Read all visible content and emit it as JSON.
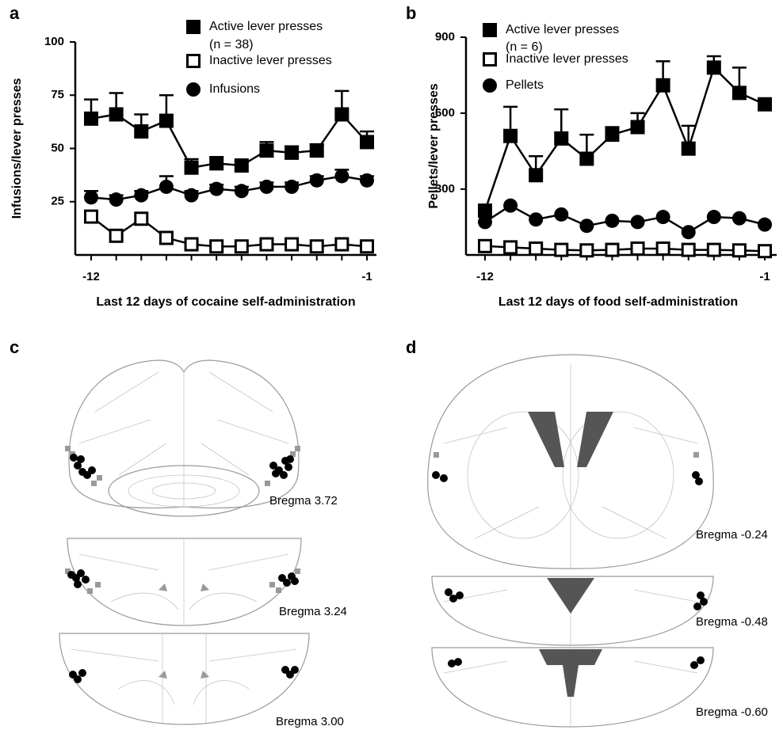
{
  "chart_data": [
    {
      "type": "line",
      "panel": "a",
      "ylabel": "Infusions/lever presses",
      "xlabel": "Last 12 days of cocaine self-administration",
      "n_label": "(n = 38)",
      "categories": [
        "-12",
        null,
        null,
        null,
        null,
        null,
        null,
        null,
        null,
        null,
        null,
        "-1"
      ],
      "ylim": [
        0,
        100
      ],
      "yticks": [
        25,
        50,
        75,
        100
      ],
      "series": [
        {
          "name": "Active lever presses",
          "marker": "square",
          "color": "#000000",
          "values": [
            64,
            66,
            58,
            63,
            41,
            43,
            42,
            49,
            48,
            49,
            66,
            53
          ],
          "errors": [
            9,
            10,
            8,
            12,
            4,
            3,
            2,
            4,
            3,
            3,
            11,
            5
          ]
        },
        {
          "name": "Inactive lever presses",
          "marker": "open-square",
          "color": "#000000",
          "values": [
            18,
            9,
            17,
            8,
            5,
            4,
            4,
            5,
            5,
            4,
            5,
            4
          ]
        },
        {
          "name": "Infusions",
          "marker": "circle",
          "color": "#000000",
          "values": [
            27,
            26,
            28,
            32,
            28,
            31,
            30,
            32,
            32,
            35,
            37,
            35
          ],
          "errors": [
            3,
            2,
            2,
            5,
            2,
            2,
            2,
            2,
            2,
            2,
            3,
            2
          ]
        }
      ]
    },
    {
      "type": "line",
      "panel": "b",
      "ylabel": "Pellets/lever presses",
      "xlabel": "Last 12 days of food self-administration",
      "n_label": "(n = 6)",
      "categories": [
        "-12",
        null,
        null,
        null,
        null,
        null,
        null,
        null,
        null,
        null,
        null,
        "-1"
      ],
      "ylim": [
        40,
        900
      ],
      "yticks": [
        300,
        600,
        900
      ],
      "series": [
        {
          "name": "Active lever presses",
          "marker": "square",
          "color": "#000000",
          "values": [
            215,
            510,
            355,
            500,
            420,
            515,
            545,
            710,
            460,
            780,
            680,
            635
          ],
          "errors": [
            0,
            115,
            75,
            115,
            95,
            30,
            55,
            95,
            90,
            45,
            100,
            20
          ]
        },
        {
          "name": "Inactive lever presses",
          "marker": "open-square",
          "color": "#000000",
          "values": [
            75,
            70,
            65,
            60,
            58,
            60,
            65,
            65,
            60,
            60,
            58,
            55
          ]
        },
        {
          "name": "Pellets",
          "marker": "circle",
          "color": "#000000",
          "values": [
            170,
            235,
            180,
            200,
            155,
            175,
            170,
            190,
            130,
            190,
            185,
            160
          ]
        }
      ]
    }
  ],
  "brain_panels": [
    {
      "panel": "c",
      "sections": [
        "Bregma 3.72",
        "Bregma 3.24",
        "Bregma 3.00"
      ]
    },
    {
      "panel": "d",
      "sections": [
        "Bregma -0.24",
        "Bregma -0.48",
        "Bregma -0.60"
      ]
    }
  ]
}
